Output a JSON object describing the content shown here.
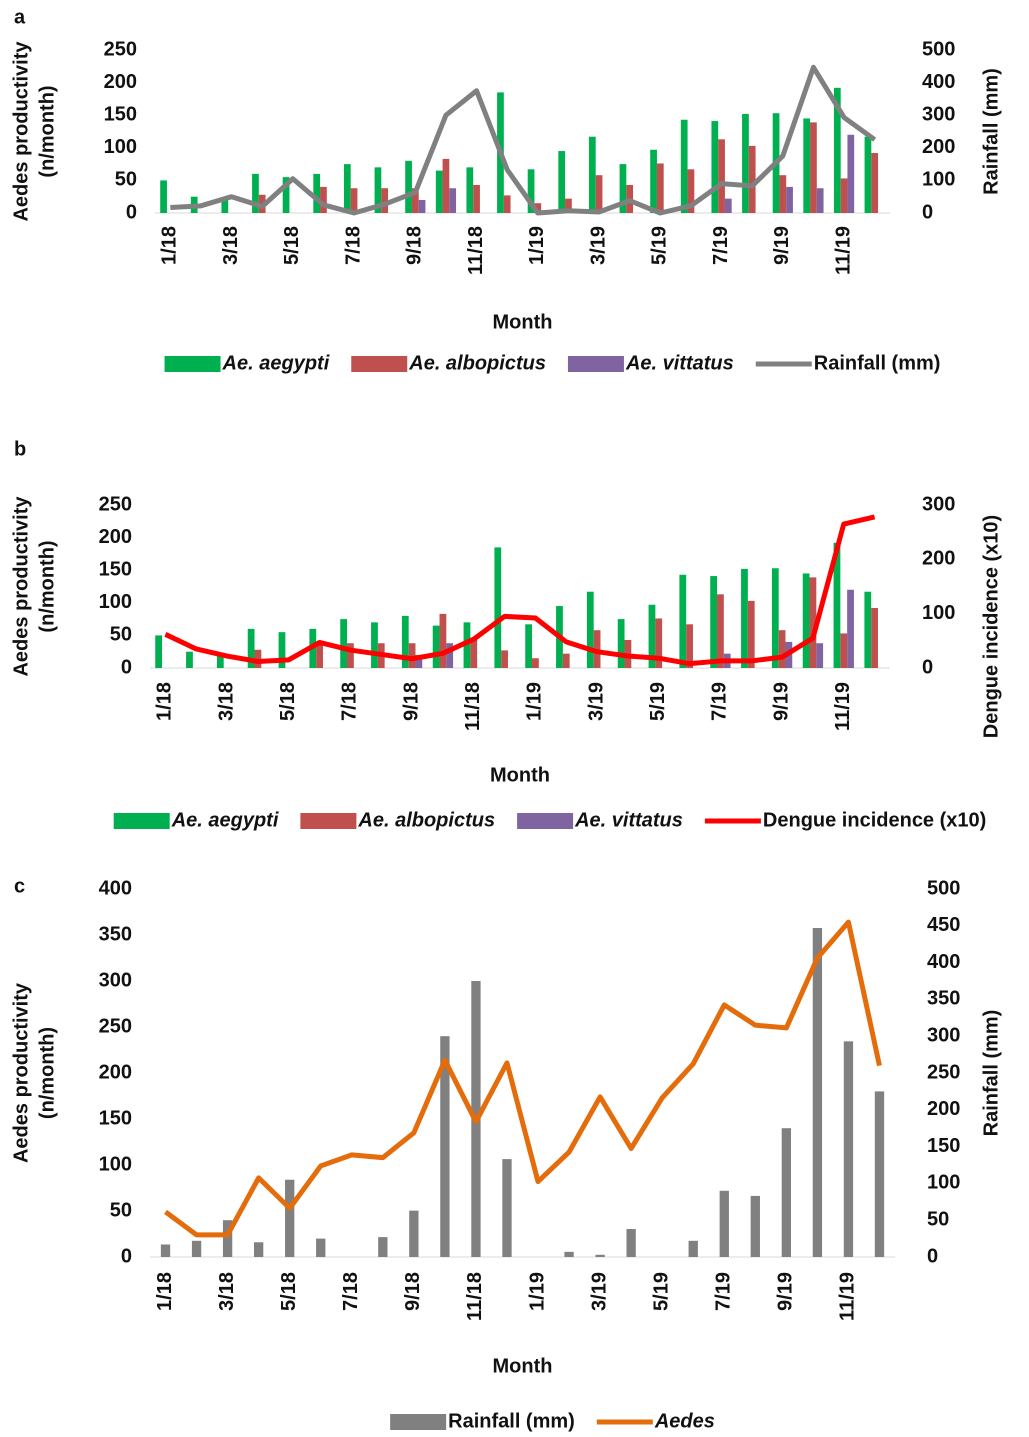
{
  "chart_data": [
    {
      "type": "bar",
      "panel": "a",
      "xlabel": "Month",
      "ylabel": [
        "Aedes productivity",
        "(n/month)"
      ],
      "y2label": "Rainfall (mm)",
      "categories": [
        "1/18",
        null,
        "3/18",
        null,
        "5/18",
        null,
        "7/18",
        null,
        "9/18",
        null,
        "11/18",
        null,
        "1/19",
        null,
        "3/19",
        null,
        "5/19",
        null,
        "7/19",
        null,
        "9/19",
        null,
        "11/19",
        null
      ],
      "ylim": [
        0,
        250
      ],
      "yticks": [
        0,
        50,
        100,
        150,
        200,
        250
      ],
      "y2lim": [
        0,
        500
      ],
      "y2ticks": [
        0,
        100,
        200,
        300,
        400,
        500
      ],
      "series": [
        {
          "name": "Ae. aegypti",
          "color": "#00b050",
          "italic": true,
          "values": [
            50,
            25,
            22,
            60,
            55,
            60,
            75,
            70,
            80,
            65,
            70,
            185,
            67,
            95,
            117,
            75,
            97,
            143,
            141,
            152,
            153,
            145,
            192,
            117
          ]
        },
        {
          "name": "Ae. albopictus",
          "color": "#c0504d",
          "italic": true,
          "values": [
            0,
            0,
            0,
            28,
            0,
            40,
            38,
            38,
            38,
            83,
            43,
            27,
            15,
            22,
            58,
            43,
            76,
            67,
            113,
            103,
            58,
            139,
            53,
            92
          ]
        },
        {
          "name": "Ae. vittatus",
          "color": "#8064a2",
          "italic": true,
          "values": [
            0,
            0,
            0,
            0,
            0,
            0,
            0,
            0,
            20,
            38,
            0,
            0,
            0,
            0,
            0,
            0,
            0,
            0,
            22,
            0,
            40,
            38,
            120,
            0
          ]
        },
        {
          "name": "Rainfall (mm)",
          "color": "#808080",
          "type": "line",
          "axis": "y2",
          "values": [
            17,
            22,
            50,
            20,
            105,
            25,
            0,
            27,
            63,
            300,
            375,
            133,
            0,
            7,
            3,
            38,
            0,
            22,
            90,
            83,
            175,
            447,
            293,
            225
          ]
        }
      ]
    },
    {
      "type": "bar",
      "panel": "b",
      "xlabel": "Month",
      "ylabel": [
        "Aedes productivity",
        "(n/month)"
      ],
      "y2label": "Dengue incidence (x10)",
      "categories": [
        "1/18",
        null,
        "3/18",
        null,
        "5/18",
        null,
        "7/18",
        null,
        "9/18",
        null,
        "11/18",
        null,
        "1/19",
        null,
        "3/19",
        null,
        "5/19",
        null,
        "7/19",
        null,
        "9/19",
        null,
        "11/19",
        null
      ],
      "ylim": [
        0,
        250
      ],
      "yticks": [
        0,
        50,
        100,
        150,
        200,
        250
      ],
      "y2lim": [
        0,
        300
      ],
      "y2ticks": [
        0,
        100,
        200,
        300
      ],
      "series": [
        {
          "name": "Ae. aegypti",
          "color": "#00b050",
          "italic": true,
          "values": [
            50,
            25,
            22,
            60,
            55,
            60,
            75,
            70,
            80,
            65,
            70,
            185,
            67,
            95,
            117,
            75,
            97,
            143,
            141,
            152,
            153,
            145,
            192,
            117
          ]
        },
        {
          "name": "Ae. albopictus",
          "color": "#c0504d",
          "italic": true,
          "values": [
            0,
            0,
            0,
            28,
            0,
            40,
            38,
            38,
            38,
            83,
            43,
            27,
            15,
            22,
            58,
            43,
            76,
            67,
            113,
            103,
            58,
            139,
            53,
            92
          ]
        },
        {
          "name": "Ae. vittatus",
          "color": "#8064a2",
          "italic": true,
          "values": [
            0,
            0,
            0,
            0,
            0,
            0,
            0,
            0,
            20,
            38,
            0,
            0,
            0,
            0,
            0,
            0,
            0,
            0,
            22,
            0,
            40,
            38,
            120,
            0
          ]
        },
        {
          "name": "Dengue incidence (x10)",
          "color": "#ff0000",
          "type": "line",
          "axis": "y2",
          "values": [
            62,
            35,
            22,
            12,
            15,
            47,
            33,
            25,
            17,
            27,
            53,
            95,
            92,
            48,
            30,
            22,
            18,
            8,
            13,
            13,
            20,
            55,
            265,
            278
          ]
        }
      ]
    },
    {
      "type": "bar",
      "panel": "c",
      "xlabel": "Month",
      "ylabel": [
        "Aedes productivity",
        "(n/month)"
      ],
      "y2label": "Rainfall (mm)",
      "categories": [
        "1/18",
        null,
        "3/18",
        null,
        "5/18",
        null,
        "7/18",
        null,
        "9/18",
        null,
        "11/18",
        null,
        "1/19",
        null,
        "3/19",
        null,
        "5/19",
        null,
        "7/19",
        null,
        "9/19",
        null,
        "11/19",
        null
      ],
      "ylim": [
        0,
        400
      ],
      "yticks": [
        0,
        50,
        100,
        150,
        200,
        250,
        300,
        350,
        400
      ],
      "y2lim": [
        0,
        500
      ],
      "y2ticks": [
        0,
        50,
        100,
        150,
        200,
        250,
        300,
        350,
        400,
        450,
        500
      ],
      "series": [
        {
          "name": "Rainfall (mm)",
          "color": "#808080",
          "axis": "y2",
          "values": [
            17,
            22,
            50,
            20,
            105,
            25,
            0,
            27,
            63,
            300,
            375,
            133,
            0,
            7,
            3,
            38,
            0,
            22,
            90,
            83,
            175,
            447,
            293,
            225
          ]
        },
        {
          "name": "Aedes",
          "color": "#e46c0a",
          "type": "line",
          "italic": true,
          "values": [
            49,
            24,
            24,
            86,
            53,
            99,
            111,
            108,
            135,
            214,
            147,
            211,
            82,
            114,
            174,
            118,
            173,
            210,
            274,
            252,
            249,
            325,
            364,
            208
          ]
        }
      ]
    }
  ]
}
